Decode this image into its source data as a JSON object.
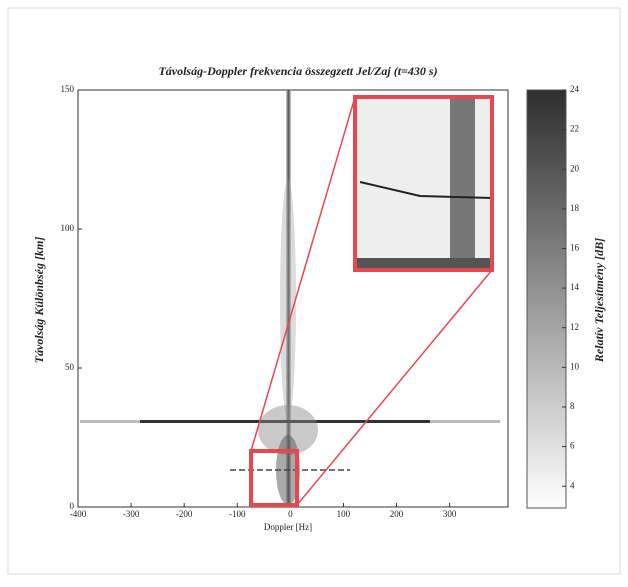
{
  "chart_data": {
    "type": "heatmap",
    "title": "Távolság-Doppler frekvencia összegzett Jel/Zaj (t=430 s)",
    "x_label": "Doppler [Hz]",
    "y_label": "Távolság Különbség [km]",
    "colorbar_label": "Relatív Teljesítmény [dB]",
    "xlim": [
      -400,
      410
    ],
    "xticks": [
      -400,
      -300,
      -200,
      -100,
      0,
      100,
      200,
      300
    ],
    "ylim": [
      0,
      150
    ],
    "yticks": [
      0,
      50,
      100,
      150
    ],
    "clim": [
      2.9,
      24
    ],
    "cticks": [
      4,
      6,
      8,
      10,
      12,
      14,
      16,
      18,
      20,
      22,
      24
    ],
    "colormap": [
      "#ffffff",
      "#2e2e2e"
    ],
    "zoom_color": "#e8474f"
  }
}
